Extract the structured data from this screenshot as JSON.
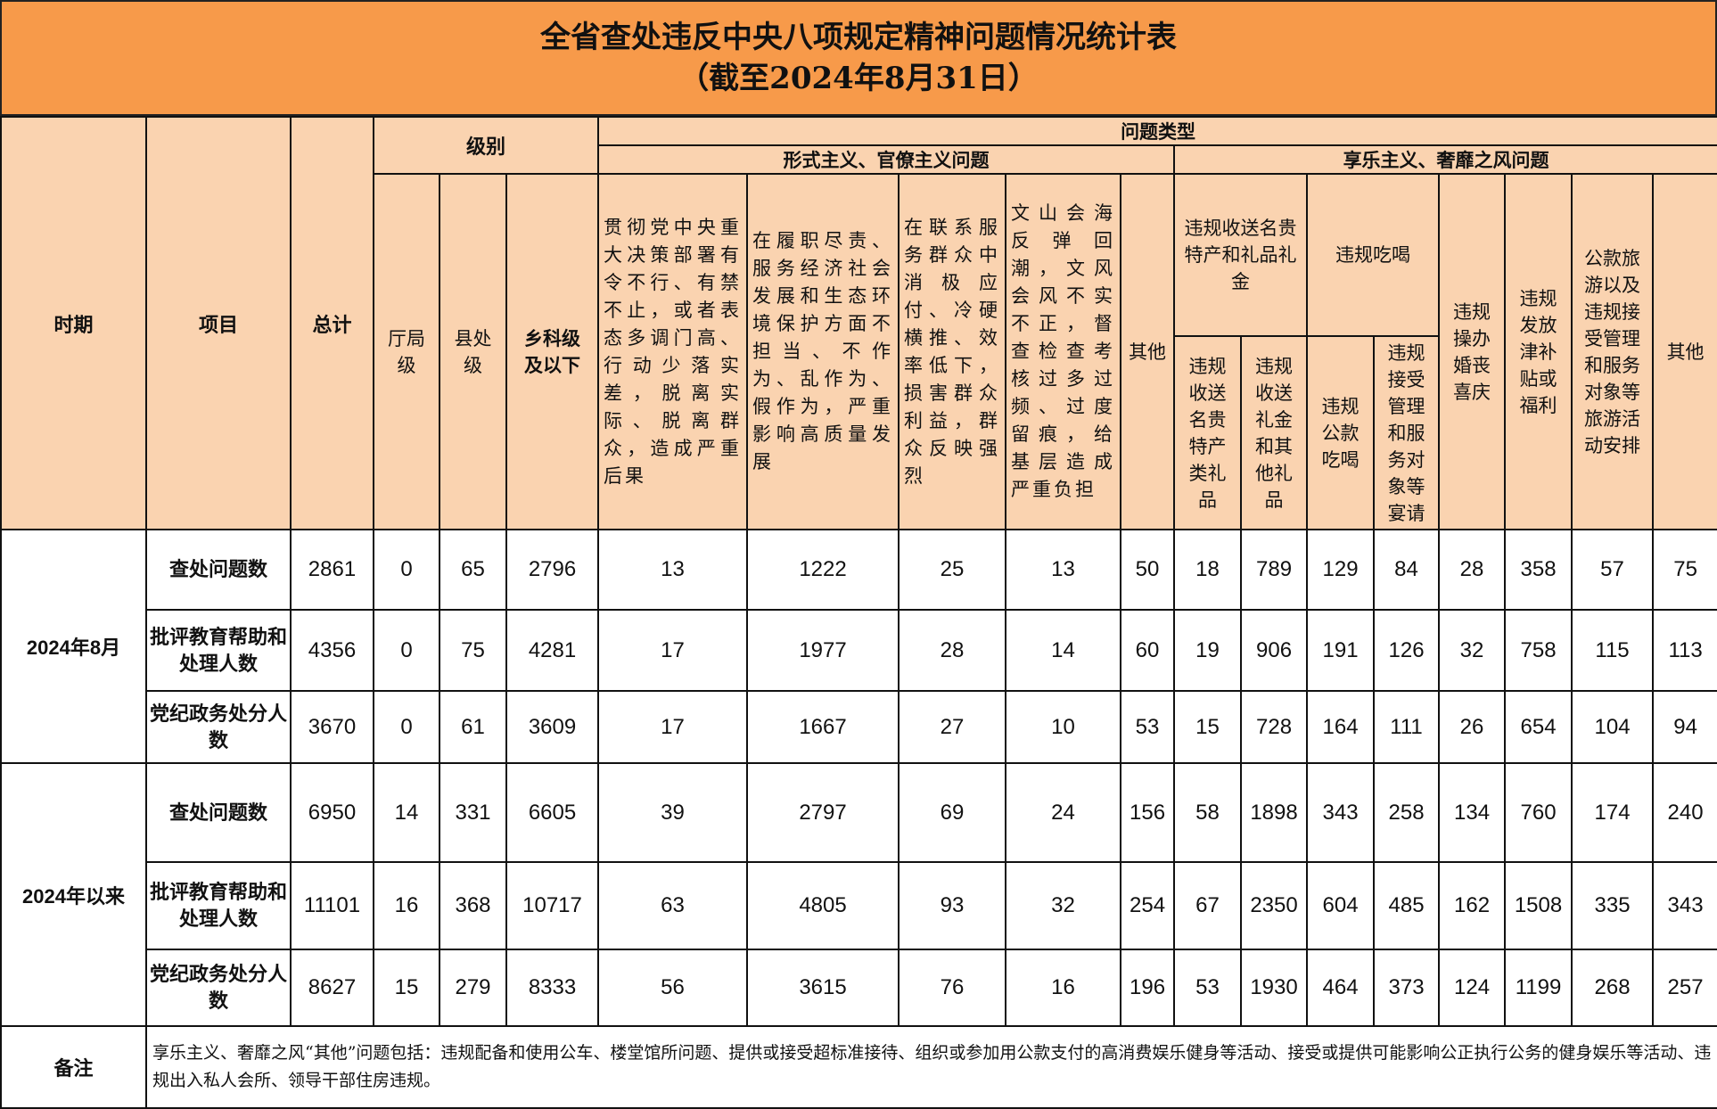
{
  "title": {
    "line1": "全省查处违反中央八项规定精神问题情况统计表",
    "line2": "（截至2024年8月31日）"
  },
  "colors": {
    "title_bg": "#F79A4A",
    "header_bg": "#FAD3B0",
    "border": "#111111"
  },
  "header": {
    "period": "时期",
    "item": "项目",
    "total": "总计",
    "level": "级别",
    "issue_type": "问题类型",
    "levels": [
      "厅局级",
      "县处级",
      "乡科级及以下"
    ],
    "formalism_group": "形式主义、官僚主义问题",
    "hedonism_group": "享乐主义、奢靡之风问题",
    "formalism_cols": [
      "贯彻党中央重大决策部署有令不行、有禁不止，或者表态多调门高、行动少落实差，脱离实际、脱离群众，造成严重后果",
      "在履职尽责、服务经济社会发展和生态环境保护方面不担当、不作为、乱作为、假作为，严重影响高质量发展",
      "在联系服务群众中消极应付、冷硬横推、效率低下，损害群众利益，群众反映强烈",
      "文山会海反弹回潮，文风会风不实不正，督查检查考核过多过频、过度留痕，给基层造成严重负担",
      "其他"
    ],
    "gift_group": "违规收送名贵特产和礼品礼金",
    "gift_cols": [
      "违规收送名贵特产类礼品",
      "违规收送礼金和其他礼品"
    ],
    "dining_group": "违规吃喝",
    "dining_cols": [
      "违规公款吃喝",
      "违规接受管理和服务对象等宴请"
    ],
    "hedonism_other_cols": [
      "违规操办婚丧喜庆",
      "违规发放津补贴或福利",
      "公款旅游以及违规接受管理和服务对象等旅游活动安排",
      "其他"
    ]
  },
  "periods": [
    {
      "label": "2024年8月",
      "rows": [
        {
          "item": "查处问题数",
          "values": [
            "2861",
            "0",
            "65",
            "2796",
            "13",
            "1222",
            "25",
            "13",
            "50",
            "18",
            "789",
            "129",
            "84",
            "28",
            "358",
            "57",
            "75"
          ]
        },
        {
          "item": "批评教育帮助和处理人数",
          "values": [
            "4356",
            "0",
            "75",
            "4281",
            "17",
            "1977",
            "28",
            "14",
            "60",
            "19",
            "906",
            "191",
            "126",
            "32",
            "758",
            "115",
            "113"
          ]
        },
        {
          "item": "党纪政务处分人数",
          "values": [
            "3670",
            "0",
            "61",
            "3609",
            "17",
            "1667",
            "27",
            "10",
            "53",
            "15",
            "728",
            "164",
            "111",
            "26",
            "654",
            "104",
            "94"
          ]
        }
      ]
    },
    {
      "label": "2024年以来",
      "rows": [
        {
          "item": "查处问题数",
          "values": [
            "6950",
            "14",
            "331",
            "6605",
            "39",
            "2797",
            "69",
            "24",
            "156",
            "58",
            "1898",
            "343",
            "258",
            "134",
            "760",
            "174",
            "240"
          ]
        },
        {
          "item": "批评教育帮助和处理人数",
          "values": [
            "11101",
            "16",
            "368",
            "10717",
            "63",
            "4805",
            "93",
            "32",
            "254",
            "67",
            "2350",
            "604",
            "485",
            "162",
            "1508",
            "335",
            "343"
          ]
        },
        {
          "item": "党纪政务处分人数",
          "values": [
            "8627",
            "15",
            "279",
            "8333",
            "56",
            "3615",
            "76",
            "16",
            "196",
            "53",
            "1930",
            "464",
            "373",
            "124",
            "1199",
            "268",
            "257"
          ]
        }
      ]
    }
  ],
  "note": {
    "label": "备注",
    "text": "享乐主义、奢靡之风“其他”问题包括：违规配备和使用公车、楼堂馆所问题、提供或接受超标准接待、组织或参加用公款支付的高消费娱乐健身等活动、接受或提供可能影响公正执行公务的健身娱乐等活动、违规出入私人会所、领导干部住房违规。"
  }
}
